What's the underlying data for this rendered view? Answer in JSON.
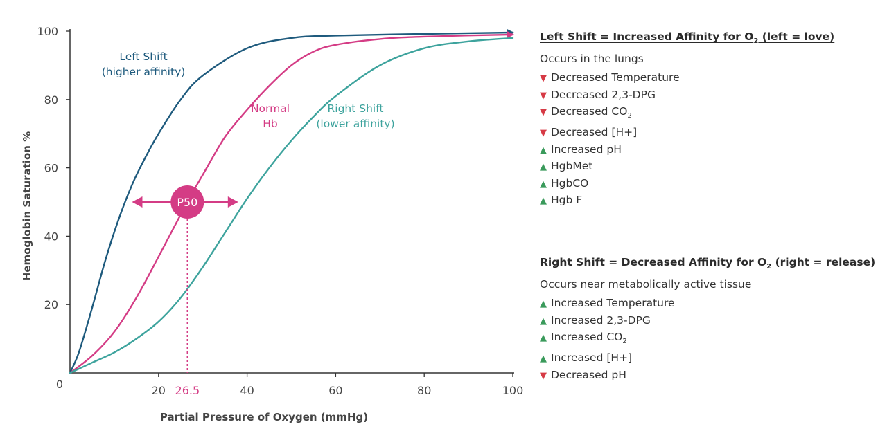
{
  "chart_data": {
    "type": "line",
    "xlabel": "Partial Pressure of Oxygen (mmHg)",
    "ylabel": "Hemoglobin Saturation %",
    "xlim": [
      0,
      100
    ],
    "ylim": [
      0,
      100
    ],
    "x_ticks": [
      20,
      40,
      60,
      80,
      100
    ],
    "y_ticks": [
      0,
      20,
      40,
      60,
      80,
      100
    ],
    "grid": false,
    "series": [
      {
        "name": "Left Shift (higher affinity)",
        "color": "#1e5a7d",
        "x": [
          0,
          2,
          5,
          8,
          11,
          14,
          17,
          20,
          25,
          30,
          40,
          50,
          60,
          80,
          100
        ],
        "y": [
          0,
          6,
          19,
          33,
          45,
          55,
          63,
          70,
          80,
          87,
          95,
          98,
          98.7,
          99.2,
          99.6
        ]
      },
      {
        "name": "Normal Hb",
        "color": "#d43c85",
        "x": [
          0,
          5,
          10,
          15,
          20,
          26.5,
          30,
          35,
          40,
          45,
          50,
          55,
          60,
          70,
          80,
          100
        ],
        "y": [
          0,
          5,
          12,
          22,
          34,
          50,
          58,
          69,
          77,
          84,
          90,
          94,
          96,
          97.7,
          98.4,
          99
        ]
      },
      {
        "name": "Right Shift (lower affinity)",
        "color": "#3da39d",
        "x": [
          0,
          5,
          10,
          15,
          20,
          25,
          30,
          35,
          40,
          45,
          50,
          55,
          60,
          70,
          80,
          90,
          100
        ],
        "y": [
          0,
          3,
          6,
          10,
          15,
          22,
          31,
          41,
          51,
          60,
          68,
          75,
          81,
          90,
          95,
          97,
          98
        ]
      }
    ],
    "annotations": {
      "left_label": [
        "Left Shift",
        "(higher affinity)"
      ],
      "normal_label": [
        "Normal",
        "Hb"
      ],
      "right_label": [
        "Right Shift",
        "(lower affinity)"
      ],
      "p50_label": "P50",
      "p50_x": 26.5,
      "p50_y": 50,
      "p50_x_label": "26.5",
      "arrow_range": [
        14,
        38
      ],
      "pink": "#d43c85"
    }
  },
  "legend": {
    "left_shift": {
      "title_main": "Left Shift = Increased Affinity for O",
      "title_sub": "2",
      "title_tail": " (left = love)",
      "subtitle": "Occurs in the lungs",
      "items": [
        {
          "dir": "down",
          "marker": "▼",
          "text": "Decreased Temperature",
          "sub": ""
        },
        {
          "dir": "down",
          "marker": "▼",
          "text": "Decreased 2,3-DPG",
          "sub": ""
        },
        {
          "dir": "down",
          "marker": "▼",
          "text": "Decreased CO",
          "sub": "2"
        },
        {
          "dir": "down",
          "marker": "▼",
          "text": "Decreased [H+]",
          "sub": ""
        },
        {
          "dir": "up",
          "marker": "▲",
          "text": "Increased pH",
          "sub": ""
        },
        {
          "dir": "up",
          "marker": "▲",
          "text": "HgbMet",
          "sub": ""
        },
        {
          "dir": "up",
          "marker": "▲",
          "text": "HgbCO",
          "sub": ""
        },
        {
          "dir": "up",
          "marker": "▲",
          "text": "Hgb F",
          "sub": ""
        }
      ]
    },
    "right_shift": {
      "title_main": "Right Shift = Decreased Affinity for O",
      "title_sub": "2",
      "title_tail": " (right = release)",
      "subtitle": "Occurs near metabolically active tissue",
      "items": [
        {
          "dir": "up",
          "marker": "▲",
          "text": "Increased Temperature",
          "sub": ""
        },
        {
          "dir": "up",
          "marker": "▲",
          "text": "Increased 2,3-DPG",
          "sub": ""
        },
        {
          "dir": "up",
          "marker": "▲",
          "text": "Increased CO",
          "sub": "2"
        },
        {
          "dir": "up",
          "marker": "▲",
          "text": "Increased [H+]",
          "sub": ""
        },
        {
          "dir": "down",
          "marker": "▼",
          "text": "Decreased pH",
          "sub": ""
        }
      ]
    }
  }
}
